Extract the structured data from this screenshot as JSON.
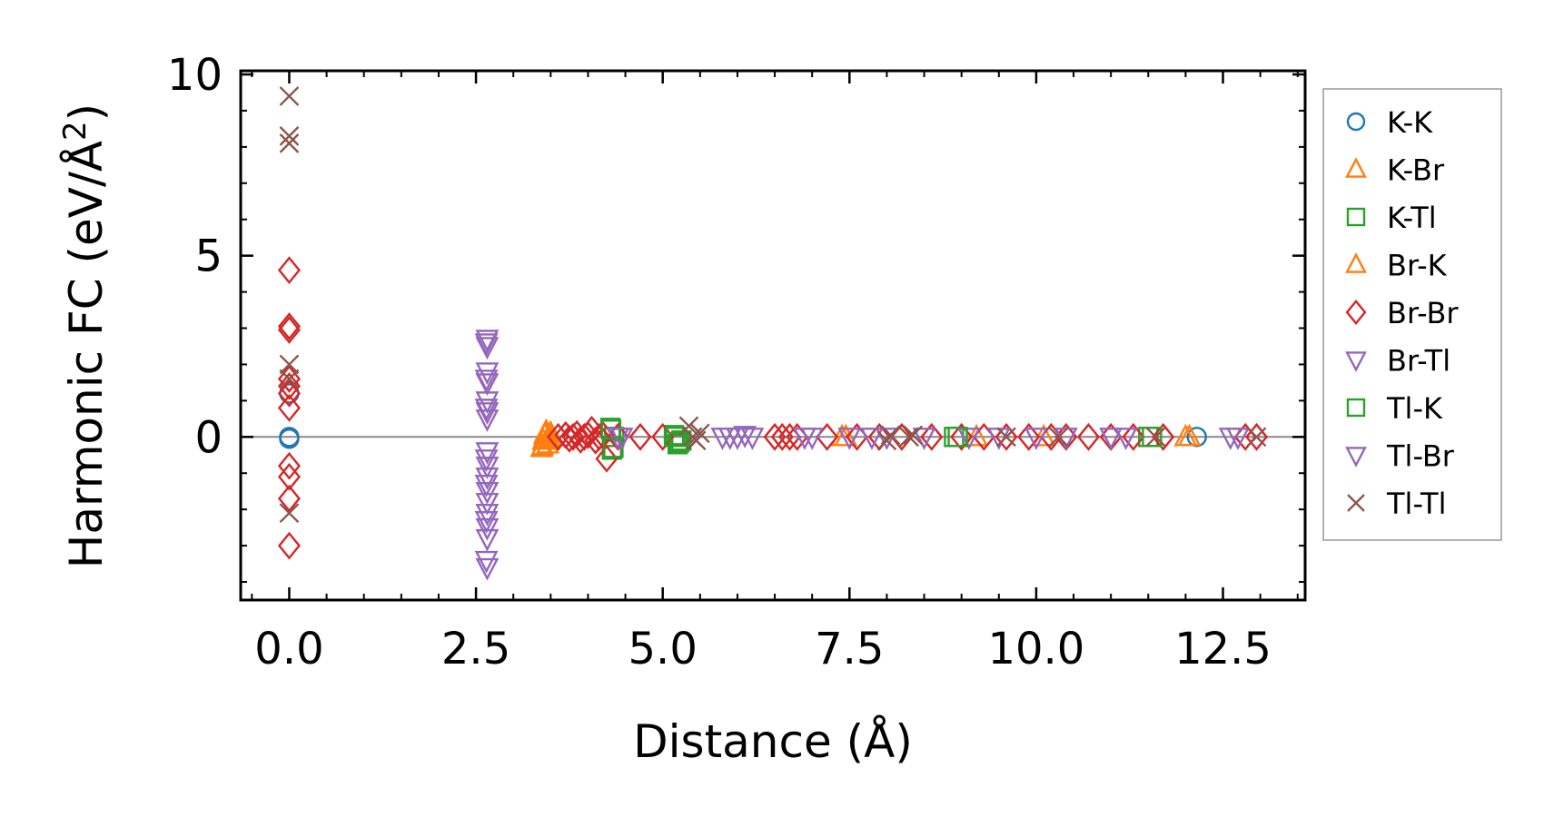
{
  "chart_data": {
    "type": "scatter",
    "title": "",
    "xlabel": "Distance (Å)",
    "ylabel_main": "Harmonic FC (eV/Å",
    "ylabel_sup": "2",
    "ylabel_close": ")",
    "xlim": [
      -0.65,
      13.6
    ],
    "ylim": [
      -4.5,
      10.1
    ],
    "xticks": [
      0.0,
      2.5,
      5.0,
      7.5,
      10.0,
      12.5
    ],
    "xtick_labels": [
      "0.0",
      "2.5",
      "5.0",
      "7.5",
      "10.0",
      "12.5"
    ],
    "yticks": [
      0,
      5,
      10
    ],
    "ytick_labels": [
      "0",
      "5",
      "10"
    ],
    "zero_line": true,
    "legend_position": "outside-right",
    "series": [
      {
        "name": "K-K",
        "marker": "circle",
        "color": "#1f77b4",
        "points": [
          [
            0,
            0
          ],
          [
            0,
            1.2
          ],
          [
            0,
            -0.05
          ],
          [
            12.15,
            0.0
          ]
        ]
      },
      {
        "name": "K-Br",
        "marker": "triangle-up",
        "color": "#ff7f0e",
        "points": [
          [
            3.38,
            -0.3
          ],
          [
            3.4,
            -0.1
          ],
          [
            3.42,
            0.05
          ],
          [
            3.44,
            0.15
          ],
          [
            3.46,
            -0.2
          ],
          [
            3.48,
            -0.05
          ],
          [
            3.5,
            0.1
          ],
          [
            7.4,
            0.0
          ],
          [
            9.2,
            0.0
          ],
          [
            10.1,
            0.0
          ],
          [
            12.05,
            0.0
          ]
        ]
      },
      {
        "name": "K-Tl",
        "marker": "square",
        "color": "#2ca02c",
        "points": [
          [
            4.3,
            0.25
          ],
          [
            4.32,
            -0.35
          ],
          [
            4.35,
            0.0
          ],
          [
            5.15,
            0.05
          ],
          [
            5.2,
            -0.2
          ],
          [
            5.25,
            -0.1
          ],
          [
            8.9,
            0.0
          ],
          [
            11.5,
            0.0
          ]
        ]
      },
      {
        "name": "Br-K",
        "marker": "triangle-up",
        "color": "#ff7f0e",
        "points": [
          [
            3.39,
            -0.25
          ],
          [
            3.43,
            0.1
          ],
          [
            3.47,
            -0.1
          ],
          [
            3.51,
            0.0
          ],
          [
            7.45,
            0.0
          ],
          [
            12.0,
            0.0
          ]
        ]
      },
      {
        "name": "Br-Br",
        "marker": "diamond",
        "color": "#d62728",
        "points": [
          [
            0,
            4.6
          ],
          [
            0,
            3.05
          ],
          [
            0,
            2.95
          ],
          [
            0,
            1.6
          ],
          [
            0,
            1.4
          ],
          [
            0,
            1.2
          ],
          [
            0,
            0.8
          ],
          [
            0,
            -0.8
          ],
          [
            0,
            -1.1
          ],
          [
            0,
            -1.7
          ],
          [
            0,
            -3.0
          ],
          [
            3.6,
            0.0
          ],
          [
            3.7,
            0.05
          ],
          [
            3.75,
            -0.05
          ],
          [
            3.8,
            0.0
          ],
          [
            3.85,
            0.08
          ],
          [
            3.9,
            -0.08
          ],
          [
            3.95,
            0.0
          ],
          [
            4.0,
            0.05
          ],
          [
            4.05,
            0.2
          ],
          [
            4.1,
            -0.1
          ],
          [
            4.15,
            0.0
          ],
          [
            4.2,
            0.05
          ],
          [
            4.25,
            -0.6
          ],
          [
            4.4,
            0.0
          ],
          [
            4.7,
            0.0
          ],
          [
            5.0,
            0.0
          ],
          [
            6.5,
            0.0
          ],
          [
            6.6,
            0.0
          ],
          [
            6.7,
            0.0
          ],
          [
            6.8,
            0.0
          ],
          [
            7.2,
            0.0
          ],
          [
            7.6,
            0.0
          ],
          [
            7.9,
            0.0
          ],
          [
            8.2,
            0.0
          ],
          [
            8.6,
            0.0
          ],
          [
            9.0,
            0.0
          ],
          [
            9.3,
            0.0
          ],
          [
            9.6,
            0.0
          ],
          [
            9.9,
            0.0
          ],
          [
            10.2,
            0.0
          ],
          [
            10.4,
            0.0
          ],
          [
            10.7,
            0.0
          ],
          [
            11.0,
            0.0
          ],
          [
            11.3,
            0.0
          ],
          [
            11.7,
            0.0
          ],
          [
            12.8,
            0.0
          ],
          [
            12.95,
            0.0
          ]
        ]
      },
      {
        "name": "Br-Tl",
        "marker": "triangle-down",
        "color": "#9467bd",
        "points": [
          [
            2.65,
            2.7
          ],
          [
            2.65,
            2.5
          ],
          [
            2.65,
            1.8
          ],
          [
            2.65,
            1.5
          ],
          [
            2.65,
            1.0
          ],
          [
            2.65,
            0.7
          ],
          [
            2.65,
            0.5
          ],
          [
            2.65,
            -0.4
          ],
          [
            2.65,
            -0.8
          ],
          [
            2.65,
            -1.1
          ],
          [
            2.65,
            -1.5
          ],
          [
            2.65,
            -1.8
          ],
          [
            2.65,
            -2.1
          ],
          [
            2.65,
            -2.5
          ],
          [
            2.65,
            -2.8
          ],
          [
            2.65,
            -3.6
          ],
          [
            4.4,
            0.0
          ],
          [
            5.8,
            0.0
          ],
          [
            6.0,
            0.0
          ],
          [
            6.2,
            0.0
          ],
          [
            7.0,
            0.0
          ],
          [
            7.8,
            0.0
          ],
          [
            9.1,
            0.0
          ],
          [
            10.4,
            0.0
          ],
          [
            11.2,
            0.0
          ]
        ]
      },
      {
        "name": "Tl-K",
        "marker": "square",
        "color": "#2ca02c",
        "points": [
          [
            4.31,
            0.2
          ],
          [
            4.34,
            -0.3
          ],
          [
            5.17,
            0.0
          ],
          [
            5.22,
            -0.15
          ],
          [
            8.95,
            0.0
          ],
          [
            11.55,
            0.0
          ]
        ]
      },
      {
        "name": "Tl-Br",
        "marker": "triangle-down",
        "color": "#9467bd",
        "points": [
          [
            2.64,
            2.6
          ],
          [
            2.64,
            1.6
          ],
          [
            2.64,
            0.8
          ],
          [
            2.64,
            -0.6
          ],
          [
            2.64,
            -1.3
          ],
          [
            2.64,
            -2.3
          ],
          [
            2.64,
            -3.4
          ],
          [
            4.45,
            0.0
          ],
          [
            5.9,
            0.0
          ],
          [
            6.1,
            0.05
          ],
          [
            6.9,
            0.0
          ],
          [
            7.5,
            0.0
          ],
          [
            8.0,
            0.0
          ],
          [
            8.5,
            0.0
          ],
          [
            9.5,
            0.0
          ],
          [
            10.0,
            0.0
          ],
          [
            11.0,
            0.0
          ],
          [
            12.6,
            0.0
          ],
          [
            12.7,
            0.0
          ]
        ]
      },
      {
        "name": "Tl-Tl",
        "marker": "x",
        "color": "#8c564b",
        "points": [
          [
            0,
            9.4
          ],
          [
            0,
            8.3
          ],
          [
            0,
            8.1
          ],
          [
            0,
            2.0
          ],
          [
            0,
            1.6
          ],
          [
            0,
            -2.1
          ],
          [
            5.35,
            0.3
          ],
          [
            5.4,
            0.0
          ],
          [
            5.45,
            -0.1
          ],
          [
            5.5,
            0.1
          ],
          [
            8.0,
            -0.1
          ],
          [
            8.05,
            0.05
          ],
          [
            8.3,
            0.0
          ],
          [
            8.35,
            0.05
          ],
          [
            9.6,
            0.0
          ],
          [
            10.3,
            0.0
          ],
          [
            11.6,
            0.0
          ],
          [
            12.95,
            0.0
          ]
        ]
      }
    ]
  }
}
